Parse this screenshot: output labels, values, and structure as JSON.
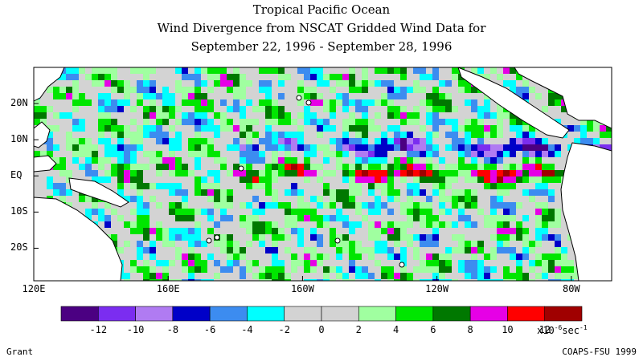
{
  "header": {
    "line1": "Tropical Pacific Ocean",
    "line2": "Wind Divergence from NSCAT Gridded Wind Data for",
    "line3": "September 22, 1996 - September 28, 1996"
  },
  "map": {
    "lat_labels": [
      "20N",
      "10N",
      "EQ",
      "10S",
      "20S"
    ],
    "lat_values": [
      20,
      10,
      0,
      -10,
      -20
    ],
    "lon_labels": [
      "120E",
      "160E",
      "160W",
      "120W",
      "80W"
    ],
    "lon_values": [
      120,
      160,
      200,
      240,
      280
    ],
    "lon_range": [
      120,
      292
    ],
    "lat_range": [
      -29,
      30
    ]
  },
  "colorbar": {
    "colors": [
      "#4b0082",
      "#7b2df0",
      "#b07bf2",
      "#0000c8",
      "#3c8cf0",
      "#00ffff",
      "#d3d3d3",
      "#d3d3d3",
      "#a0ffa0",
      "#00e600",
      "#007800",
      "#e600e6",
      "#ff0000",
      "#a00000"
    ],
    "tick_labels": [
      "-12",
      "-10",
      "-8",
      "-6",
      "-4",
      "-2",
      "0",
      "2",
      "4",
      "6",
      "8",
      "10",
      "12"
    ],
    "units_prefix": "x10",
    "units_exp": "-6",
    "units_suffix": "sec",
    "units_suffix_exp": "-1"
  },
  "footer": {
    "left": "Grant",
    "right": "COAPS-FSU 1999"
  }
}
